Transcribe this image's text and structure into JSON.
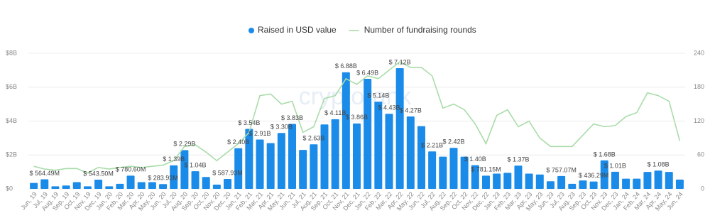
{
  "chart_data": {
    "type": "bar_line",
    "legend_position": "top",
    "watermark": "cryptorank",
    "categories": [
      "Jun, 19",
      "Jul, 19",
      "Aug, 19",
      "Sep, 19",
      "Oct, 19",
      "Nov, 19",
      "Dec, 19",
      "Jan, 20",
      "Feb, 20",
      "Mar, 20",
      "Apr, 20",
      "May, 20",
      "Jun, 20",
      "Jul, 20",
      "Aug, 20",
      "Sep, 20",
      "Oct, 20",
      "Nov, 20",
      "Dec, 20",
      "Jan, 21",
      "Feb, 21",
      "Mar, 21",
      "Apr, 21",
      "May, 21",
      "Jun, 21",
      "Jul, 21",
      "Aug, 21",
      "Sep, 21",
      "Oct, 21",
      "Nov, 21",
      "Dec, 21",
      "Jan, 22",
      "Feb, 22",
      "Mar, 22",
      "Apr, 22",
      "May, 22",
      "Jun, 22",
      "Jul, 22",
      "Aug, 22",
      "Sep, 22",
      "Oct, 22",
      "Nov, 22",
      "Dec, 22",
      "Jan, 23",
      "Feb, 23",
      "Mar, 23",
      "Apr, 23",
      "May, 23",
      "Jun, 23",
      "Jul, 23",
      "Aug, 23",
      "Sep, 23",
      "Oct, 23",
      "Nov, 23",
      "Dec, 23",
      "Jan, 24",
      "Feb, 24",
      "Mar, 24",
      "Apr, 24",
      "May, 24",
      "Jun, 24"
    ],
    "series": [
      {
        "name": "Raised in USD value",
        "type": "bar",
        "color": "#1a8be8",
        "values": [
          0.35,
          0.56449,
          0.15,
          0.2,
          0.4,
          0.15,
          0.5435,
          0.15,
          0.3,
          0.7806,
          0.4,
          0.4,
          0.28393,
          1.39,
          2.29,
          1.04,
          0.7,
          0.25,
          0.58793,
          2.4,
          3.54,
          2.91,
          2.7,
          3.3,
          3.83,
          2.3,
          2.63,
          3.8,
          4.11,
          6.88,
          3.86,
          6.49,
          5.14,
          4.43,
          7.12,
          4.27,
          3.7,
          2.21,
          1.9,
          2.42,
          1.9,
          1.4,
          0.78115,
          0.9,
          0.95,
          1.37,
          0.9,
          0.85,
          0.45,
          0.75707,
          0.3,
          0.5,
          0.43629,
          1.68,
          1.01,
          0.6,
          0.6,
          1.0,
          1.08,
          1.0,
          0.55
        ],
        "value_labels": [
          null,
          "$ 564.49M",
          null,
          null,
          null,
          null,
          "$ 543.50M",
          null,
          null,
          "$ 780.60M",
          null,
          null,
          "$ 283.93M",
          "$ 1.39B",
          "$ 2.29B",
          "$ 1.04B",
          null,
          null,
          "$ 587.93M",
          "$ 2.40B",
          "$ 3.54B",
          "$ 2.91B",
          null,
          "$ 3.30B",
          "$ 3.83B",
          null,
          "$ 2.63B",
          null,
          "$ 4.11B",
          "$ 6.88B",
          "$ 3.86B",
          "$ 6.49B",
          "$ 5.14B",
          "$ 4.43B",
          "$ 7.12B",
          "$ 4.27B",
          null,
          "$ 2.21B",
          null,
          "$ 2.42B",
          null,
          "$ 1.40B",
          "$ 781.15M",
          null,
          null,
          "$ 1.37B",
          null,
          null,
          null,
          "$ 757.07M",
          null,
          null,
          "$ 436.29M",
          "$ 1.68B",
          "$ 1.01B",
          null,
          null,
          null,
          "$ 1.08B",
          null,
          null
        ]
      },
      {
        "name": "Number of fundraising rounds",
        "type": "line",
        "axis": "y2",
        "color": "#a9dca9",
        "values": [
          40,
          35,
          33,
          36,
          36,
          28,
          38,
          35,
          38,
          40,
          38,
          40,
          42,
          50,
          75,
          78,
          65,
          50,
          65,
          80,
          100,
          165,
          168,
          150,
          155,
          100,
          110,
          160,
          165,
          195,
          185,
          200,
          195,
          210,
          225,
          215,
          215,
          200,
          143,
          150,
          140,
          115,
          80,
          130,
          140,
          110,
          120,
          90,
          75,
          75,
          75,
          95,
          115,
          110,
          112,
          128,
          135,
          170,
          165,
          155,
          85
        ]
      }
    ],
    "ylim": [
      0,
      8
    ],
    "yticks": [
      {
        "value": 0,
        "label": "$0"
      },
      {
        "value": 2,
        "label": "$2B"
      },
      {
        "value": 4,
        "label": "$4B"
      },
      {
        "value": 6,
        "label": "$6B"
      },
      {
        "value": 8,
        "label": "$8B"
      }
    ],
    "y2lim": [
      0,
      240
    ],
    "y2ticks": [
      0,
      60,
      120,
      180,
      240
    ],
    "grid": true
  }
}
